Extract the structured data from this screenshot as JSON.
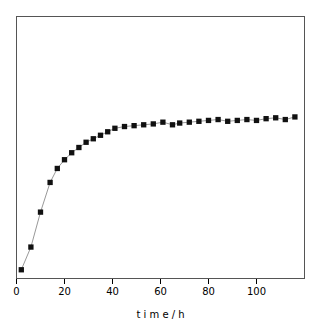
{
  "chart_data": {
    "type": "line",
    "xlabel": "t i m e / h",
    "x": [
      2,
      6,
      10,
      14,
      17,
      20,
      23,
      26,
      29,
      32,
      35,
      38,
      41,
      45,
      49,
      53,
      57,
      61,
      65,
      68,
      72,
      76,
      80,
      84,
      88,
      92,
      96,
      100,
      104,
      108,
      112,
      116
    ],
    "series": [
      {
        "color": "#999999",
        "marker": "square",
        "values": [
          0.05,
          0.18,
          0.38,
          0.55,
          0.63,
          0.68,
          0.72,
          0.75,
          0.78,
          0.8,
          0.82,
          0.84,
          0.86,
          0.87,
          0.875,
          0.88,
          0.885,
          0.895,
          0.88,
          0.89,
          0.895,
          0.9,
          0.905,
          0.91,
          0.9,
          0.905,
          0.91,
          0.905,
          0.915,
          0.92,
          0.91,
          0.925
        ]
      }
    ],
    "xlim": [
      0,
      120
    ],
    "ylim": [
      0,
      1.5
    ],
    "xticks": [
      0,
      20,
      40,
      60,
      80,
      100
    ],
    "tick_labels": "x",
    "grid": false
  }
}
